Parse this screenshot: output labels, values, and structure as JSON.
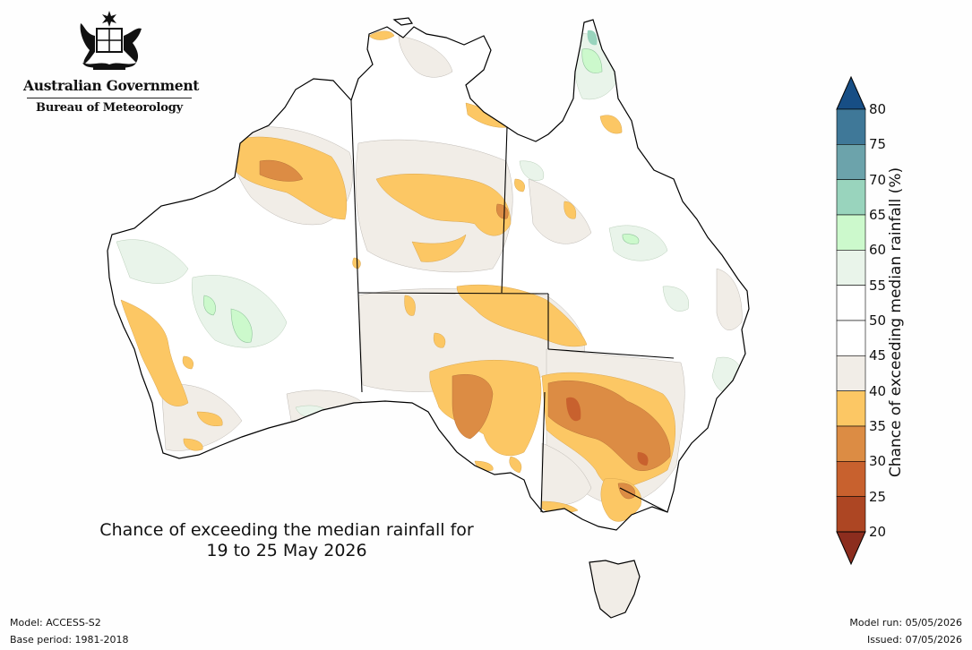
{
  "logo": {
    "government": "Australian Government",
    "agency": "Bureau of Meteorology",
    "emblem_icon": "coat-of-arms-icon"
  },
  "title": {
    "line1": "Chance of exceeding the median rainfall for",
    "line2": "19 to 25 May 2026"
  },
  "footer": {
    "model": "Model: ACCESS-S2",
    "base_period": "Base period: 1981-2018",
    "model_run": "Model run: 05/05/2026",
    "issued": "Issued: 07/05/2026"
  },
  "colorbar": {
    "label": "Chance of exceeding median rainfall (%)",
    "ticks": [
      "20",
      "25",
      "30",
      "35",
      "40",
      "45",
      "50",
      "55",
      "60",
      "65",
      "70",
      "75",
      "80"
    ],
    "bins": [
      {
        "range": "<20",
        "color": "#8c2d1e"
      },
      {
        "range": "20-25",
        "color": "#ad4623"
      },
      {
        "range": "25-30",
        "color": "#c8612e"
      },
      {
        "range": "30-35",
        "color": "#dc8c44"
      },
      {
        "range": "35-40",
        "color": "#fcc764"
      },
      {
        "range": "40-45",
        "color": "#f1ede7"
      },
      {
        "range": "45-50",
        "color": "#ffffff"
      },
      {
        "range": "50-55",
        "color": "#ffffff"
      },
      {
        "range": "55-60",
        "color": "#e9f4ea"
      },
      {
        "range": "60-65",
        "color": "#ccf9cc"
      },
      {
        "range": "65-70",
        "color": "#99d4bd"
      },
      {
        "range": "70-75",
        "color": "#6ca3ab"
      },
      {
        "range": "75-80",
        "color": "#3f7898"
      },
      {
        "range": ">80",
        "color": "#174e85"
      }
    ]
  }
}
